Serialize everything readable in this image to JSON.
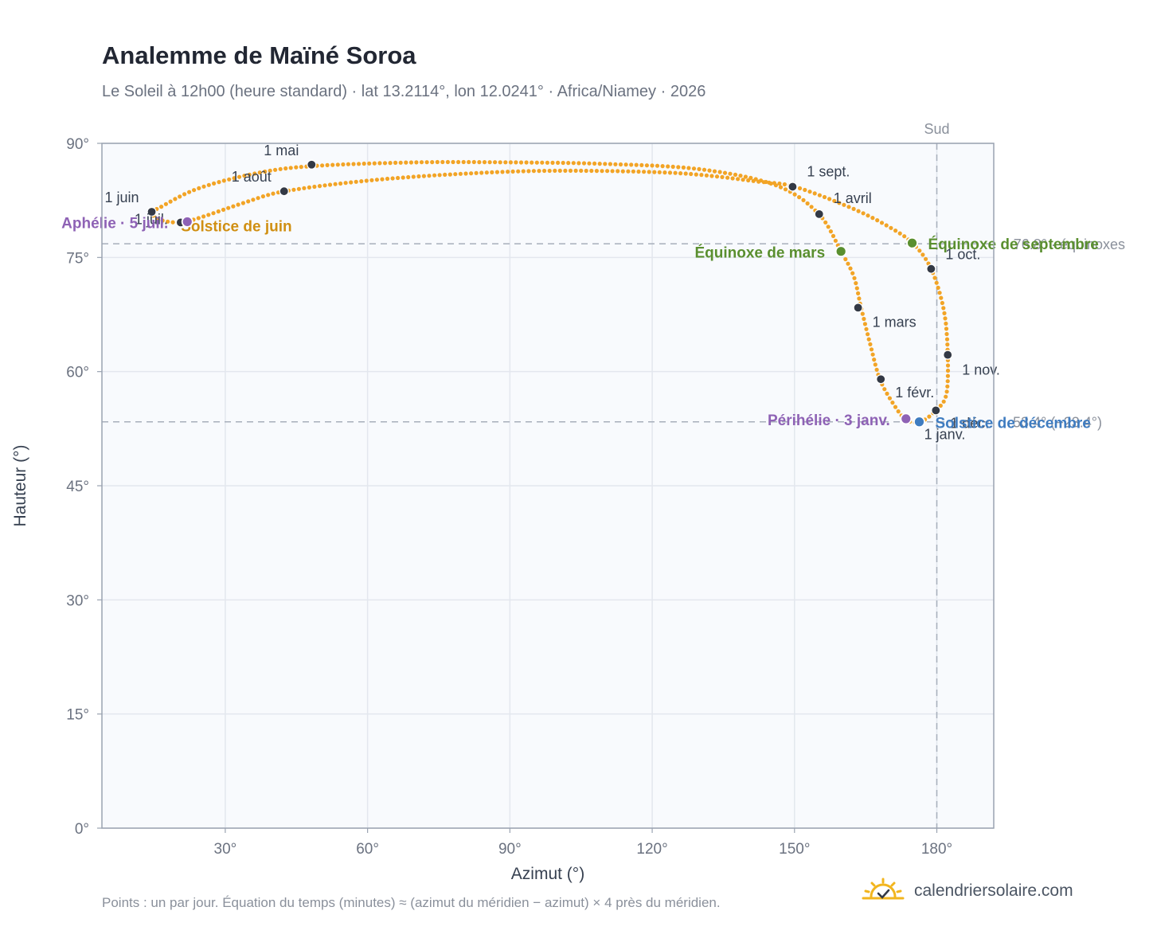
{
  "header": {
    "title": "Analemme de Maïné Soroa",
    "subtitle": "Le Soleil à 12h00 (heure standard) · lat 13.2114°, lon 12.0241° · Africa/Niamey · 2026"
  },
  "footer": {
    "note": "Points : un par jour. Équation du temps (minutes) ≈ (azimut du méridien − azimut) × 4 près du méridien.",
    "brand": "calendriersolaire.com"
  },
  "colors": {
    "curve": "#f2a426",
    "month_marker": "#333945",
    "equinox": "#5a8f2f",
    "june_solstice_label": "#d08f12",
    "december_solstice": "#3f7cc0",
    "apsis": "#8e62b5",
    "reference": "#a7afbb"
  },
  "chart_data": {
    "type": "scatter",
    "title": "Analemme de Maïné Soroa",
    "xlabel": "Azimut (°)",
    "ylabel": "Hauteur (°)",
    "xlim": [
      4,
      192
    ],
    "ylim": [
      0,
      90
    ],
    "x_ticks": [
      "30°",
      "60°",
      "90°",
      "120°",
      "150°",
      "180°"
    ],
    "y_ticks": [
      "0°",
      "15°",
      "30°",
      "45°",
      "60°",
      "75°",
      "90°"
    ],
    "grid": true,
    "reference_lines": {
      "south": {
        "azimuth": 180,
        "label": "Sud"
      },
      "equinox_altitude": {
        "altitude": 76.8,
        "label": "76.8° · équinoxes"
      },
      "december_solstice_altitude": {
        "altitude": 53.4,
        "label": "53.4° (−23.4°)"
      }
    },
    "analemma_path": [
      [
        176.5,
        53.4
      ],
      [
        173.5,
        53.7
      ],
      [
        170.8,
        55.8
      ],
      [
        168.0,
        59.0
      ],
      [
        166.0,
        63.5
      ],
      [
        164.0,
        68.5
      ],
      [
        162.5,
        72.5
      ],
      [
        159.8,
        75.8
      ],
      [
        155.0,
        80.8
      ],
      [
        146.0,
        84.5
      ],
      [
        130.0,
        86.6
      ],
      [
        110.0,
        87.3
      ],
      [
        90.0,
        87.5
      ],
      [
        70.0,
        87.5
      ],
      [
        48.0,
        87.0
      ],
      [
        36.0,
        86.0
      ],
      [
        24.0,
        84.0
      ],
      [
        16.0,
        81.5
      ],
      [
        14.5,
        81.0
      ],
      [
        16.0,
        80.0
      ],
      [
        20.5,
        79.6
      ],
      [
        25.0,
        80.3
      ],
      [
        34.0,
        82.2
      ],
      [
        42.5,
        83.7
      ],
      [
        60.0,
        85.1
      ],
      [
        80.0,
        86.0
      ],
      [
        100.0,
        86.4
      ],
      [
        125.0,
        86.1
      ],
      [
        142.0,
        85.0
      ],
      [
        150.0,
        84.3
      ],
      [
        162.0,
        81.5
      ],
      [
        170.0,
        79.0
      ],
      [
        175.0,
        76.8
      ],
      [
        178.8,
        73.5
      ],
      [
        181.5,
        68.0
      ],
      [
        182.3,
        62.2
      ],
      [
        182.0,
        57.0
      ],
      [
        179.8,
        54.9
      ],
      [
        176.5,
        53.4
      ]
    ],
    "month_markers": [
      {
        "label": "1 janv.",
        "azimuth": 176.5,
        "altitude": 53.3
      },
      {
        "label": "1 févr.",
        "azimuth": 168.2,
        "altitude": 59.0
      },
      {
        "label": "1 mars",
        "azimuth": 163.4,
        "altitude": 68.4
      },
      {
        "label": "1 avril",
        "azimuth": 155.2,
        "altitude": 80.7
      },
      {
        "label": "1 mai",
        "azimuth": 48.2,
        "altitude": 87.2
      },
      {
        "label": "1 juin",
        "azimuth": 14.5,
        "altitude": 81.0
      },
      {
        "label": "1 juil.",
        "azimuth": 20.6,
        "altitude": 79.6
      },
      {
        "label": "1 août",
        "azimuth": 42.4,
        "altitude": 83.7
      },
      {
        "label": "1 sept.",
        "azimuth": 149.6,
        "altitude": 84.3
      },
      {
        "label": "1 oct.",
        "azimuth": 178.8,
        "altitude": 73.5
      },
      {
        "label": "1 nov.",
        "azimuth": 182.3,
        "altitude": 62.2
      },
      {
        "label": "1 déc.",
        "azimuth": 179.8,
        "altitude": 54.9
      }
    ],
    "special_points": [
      {
        "label": "Équinoxe de mars",
        "azimuth": 159.8,
        "altitude": 75.8,
        "kind": "equinox"
      },
      {
        "label": "Équinoxe de septembre",
        "azimuth": 174.8,
        "altitude": 76.9,
        "kind": "equinox"
      },
      {
        "label": "Solstice de juin",
        "azimuth": 22.0,
        "altitude": 79.7,
        "kind": "june_solstice"
      },
      {
        "label": "Solstice de décembre",
        "azimuth": 176.3,
        "altitude": 53.4,
        "kind": "december_solstice"
      },
      {
        "label": "Périhélie · 3 janv.",
        "azimuth": 173.5,
        "altitude": 53.8,
        "kind": "apsis"
      },
      {
        "label": "Aphélie · 5 juil.",
        "azimuth": 22.0,
        "altitude": 79.7,
        "kind": "apsis"
      }
    ]
  }
}
